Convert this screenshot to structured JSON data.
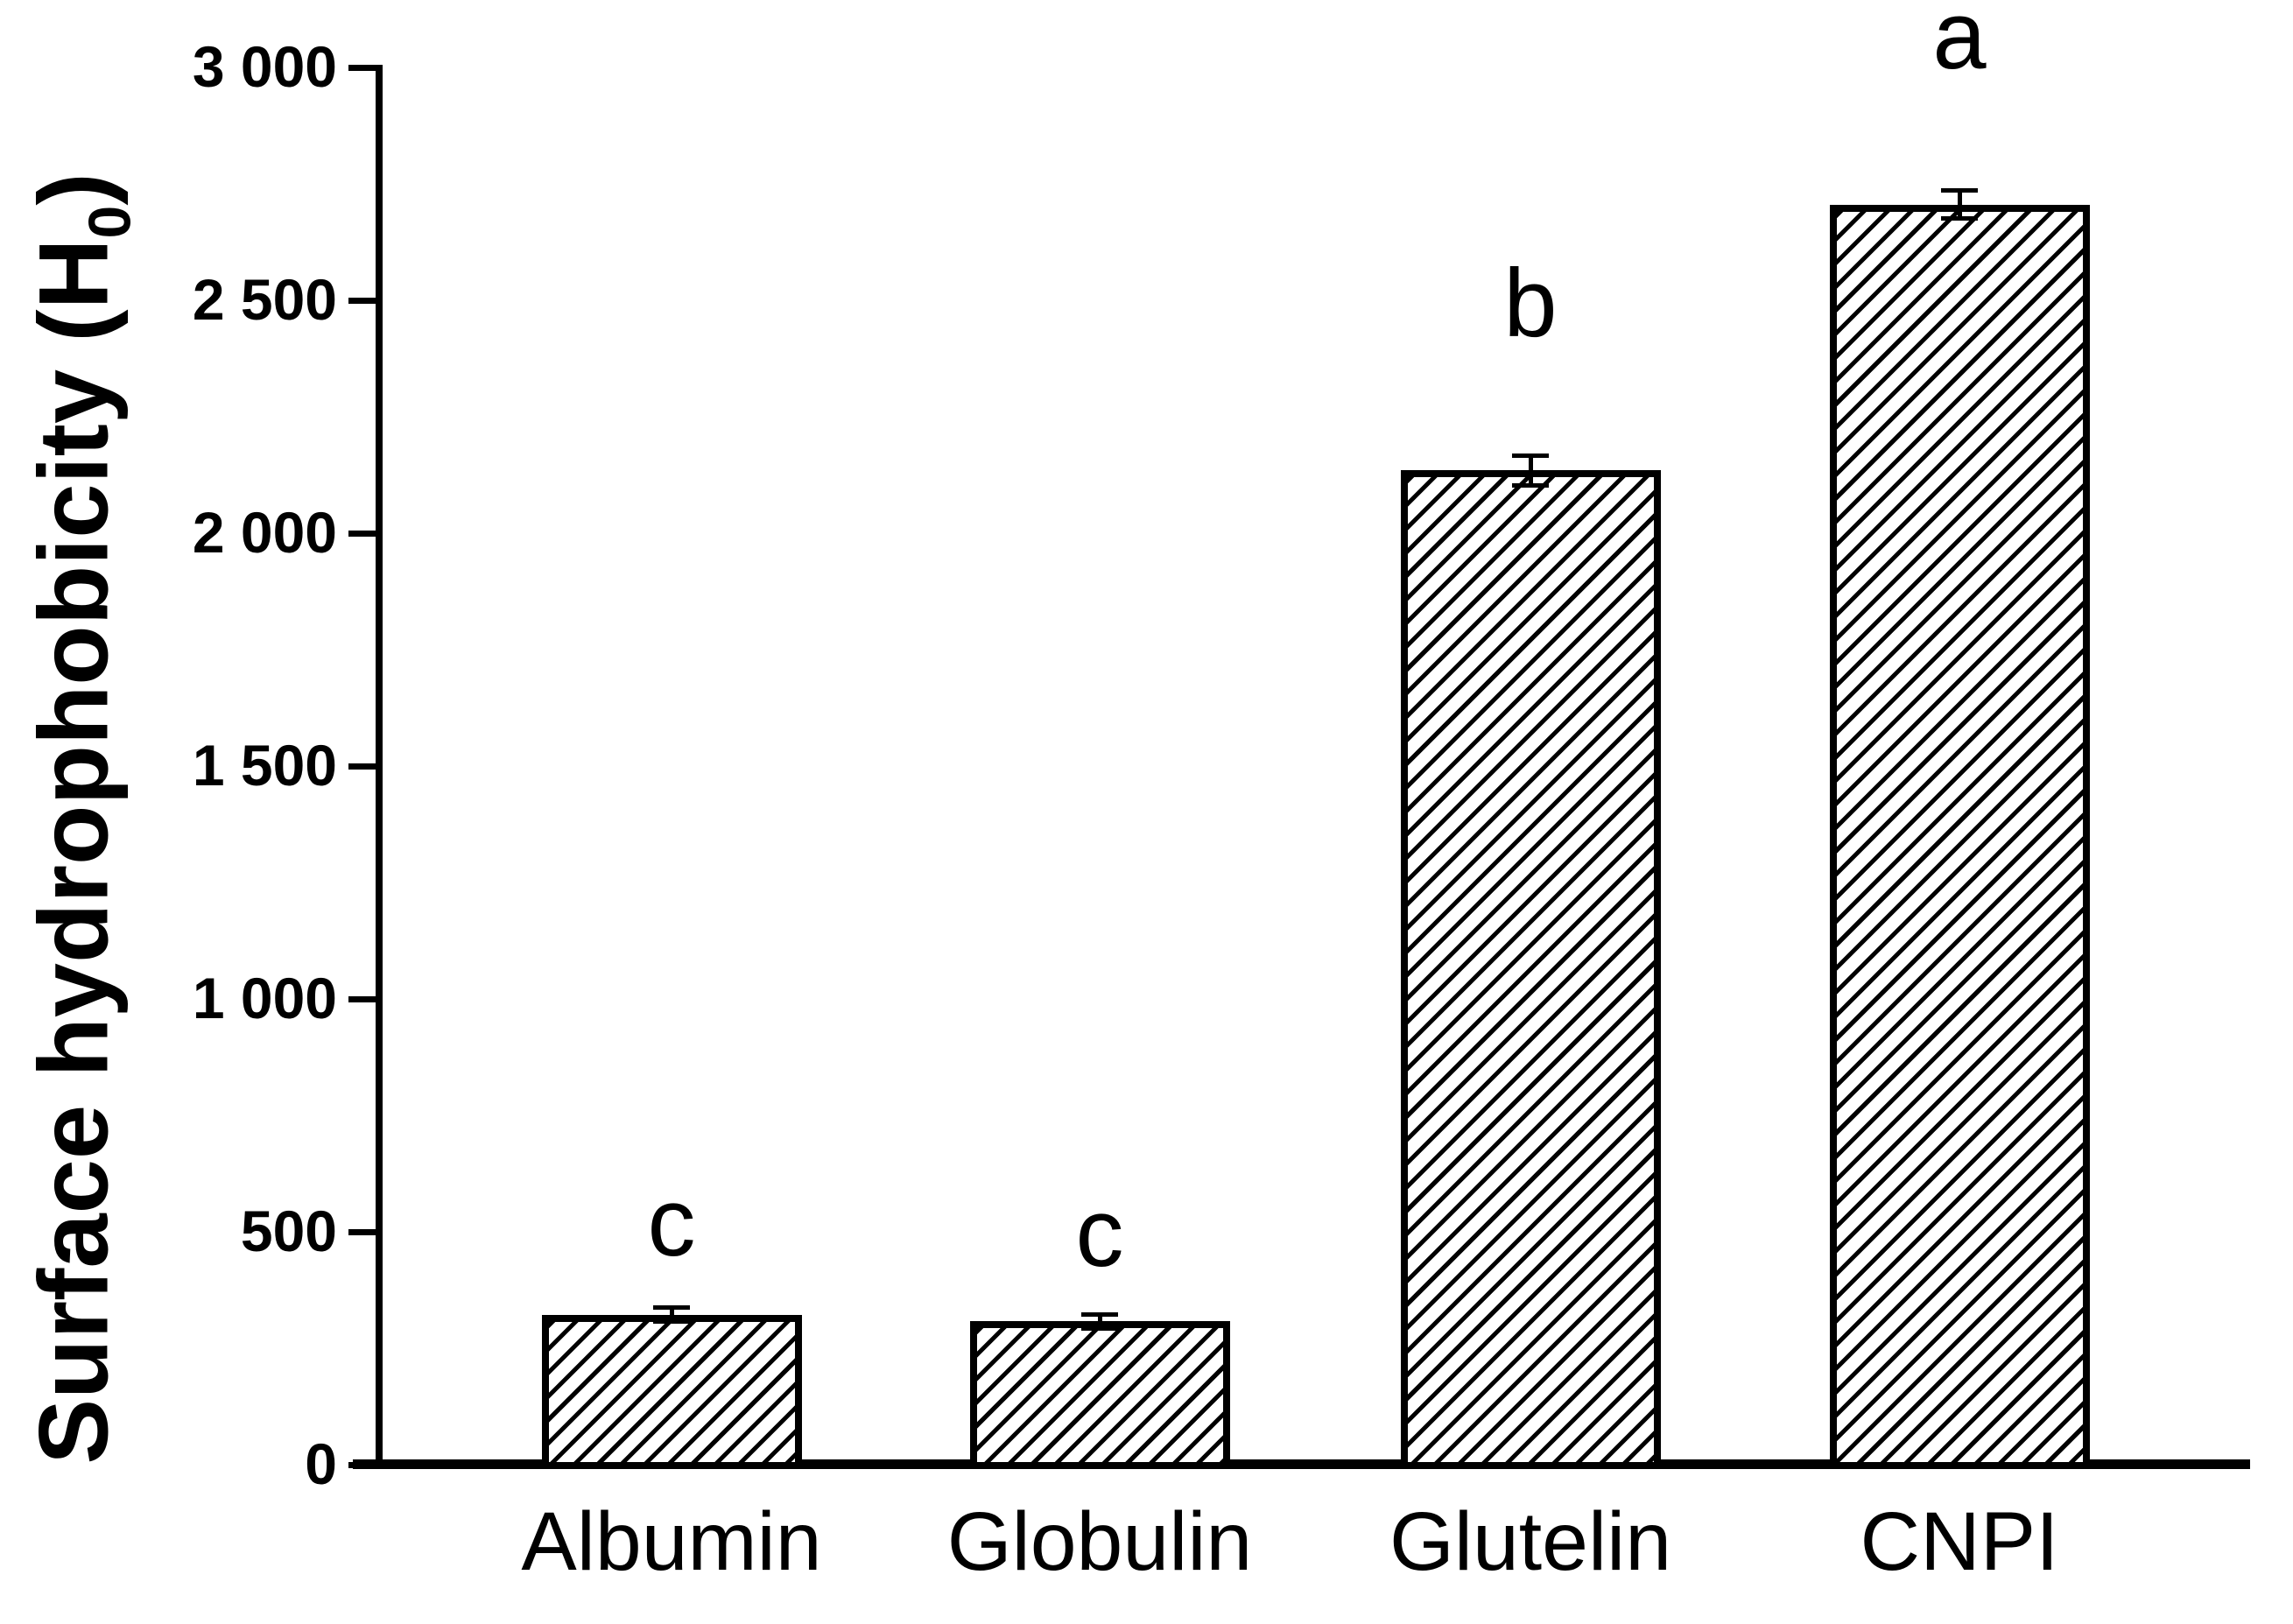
{
  "figure": {
    "background": "#ffffff",
    "ink_color": "#000000"
  },
  "y_axis": {
    "title_main": "Surface hydrophobicity (H",
    "title_sub": "0",
    "title_close": ")",
    "ticks": [
      {
        "value": 3000,
        "label": "3 000"
      },
      {
        "value": 2500,
        "label": "2 500"
      },
      {
        "value": 2000,
        "label": "2 000"
      },
      {
        "value": 1500,
        "label": "1 500"
      },
      {
        "value": 1000,
        "label": "1 000"
      },
      {
        "value": 500,
        "label": "500"
      },
      {
        "value": 0,
        "label": "0"
      }
    ]
  },
  "chart_data": {
    "type": "bar",
    "title": "",
    "xlabel": "",
    "ylabel": "Surface hydrophobicity (H0)",
    "ylim": [
      0,
      3000
    ],
    "grid": false,
    "legend": "none",
    "bar_fill": "white with black diagonal hatch (/)",
    "categories": [
      "Albumin",
      "Globulin",
      "Glutelin",
      "CNPI"
    ],
    "values": [
      322,
      308,
      2135,
      2705
    ],
    "errors": [
      15,
      15,
      32,
      30
    ],
    "sig_letters": [
      "c",
      "c",
      "b",
      "a"
    ],
    "letter_offsets_px": [
      105,
      100,
      190,
      193
    ]
  }
}
